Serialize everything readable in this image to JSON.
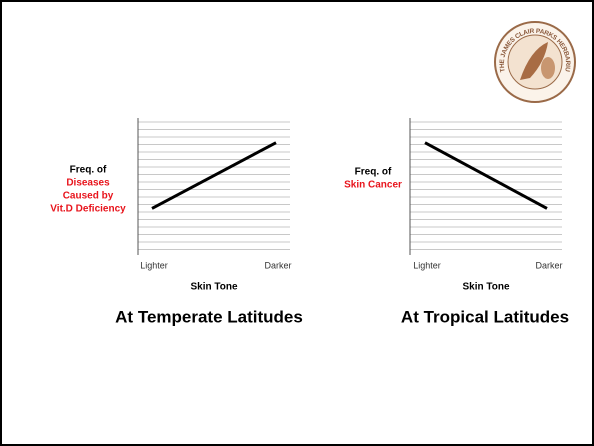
{
  "logo_text": "THE JAMES CLAIR PARKS HERBARIUM",
  "chart_data": [
    {
      "type": "line",
      "ylabel": "Freq. of",
      "ylabel_highlight": [
        "Diseases",
        "Caused by",
        "Vit.D Deficiency"
      ],
      "highlight_color": "#e8141c",
      "xlabel": "Skin Tone",
      "caption": "At Temperate Latitudes",
      "categories": [
        "Lighter",
        "Darker"
      ],
      "values": [
        3.4,
        8.2
      ],
      "color": "#000000",
      "ylim": [
        0,
        10
      ],
      "grid": true
    },
    {
      "type": "line",
      "ylabel": "Freq. of",
      "ylabel_highlight": [
        "Skin Cancer"
      ],
      "highlight_color": "#e8141c",
      "xlabel": "Skin Tone",
      "caption": "At Tropical Latitudes",
      "categories": [
        "Lighter",
        "Darker"
      ],
      "values": [
        8.2,
        3.4
      ],
      "color": "#000000",
      "ylim": [
        0,
        10
      ],
      "grid": true
    }
  ]
}
